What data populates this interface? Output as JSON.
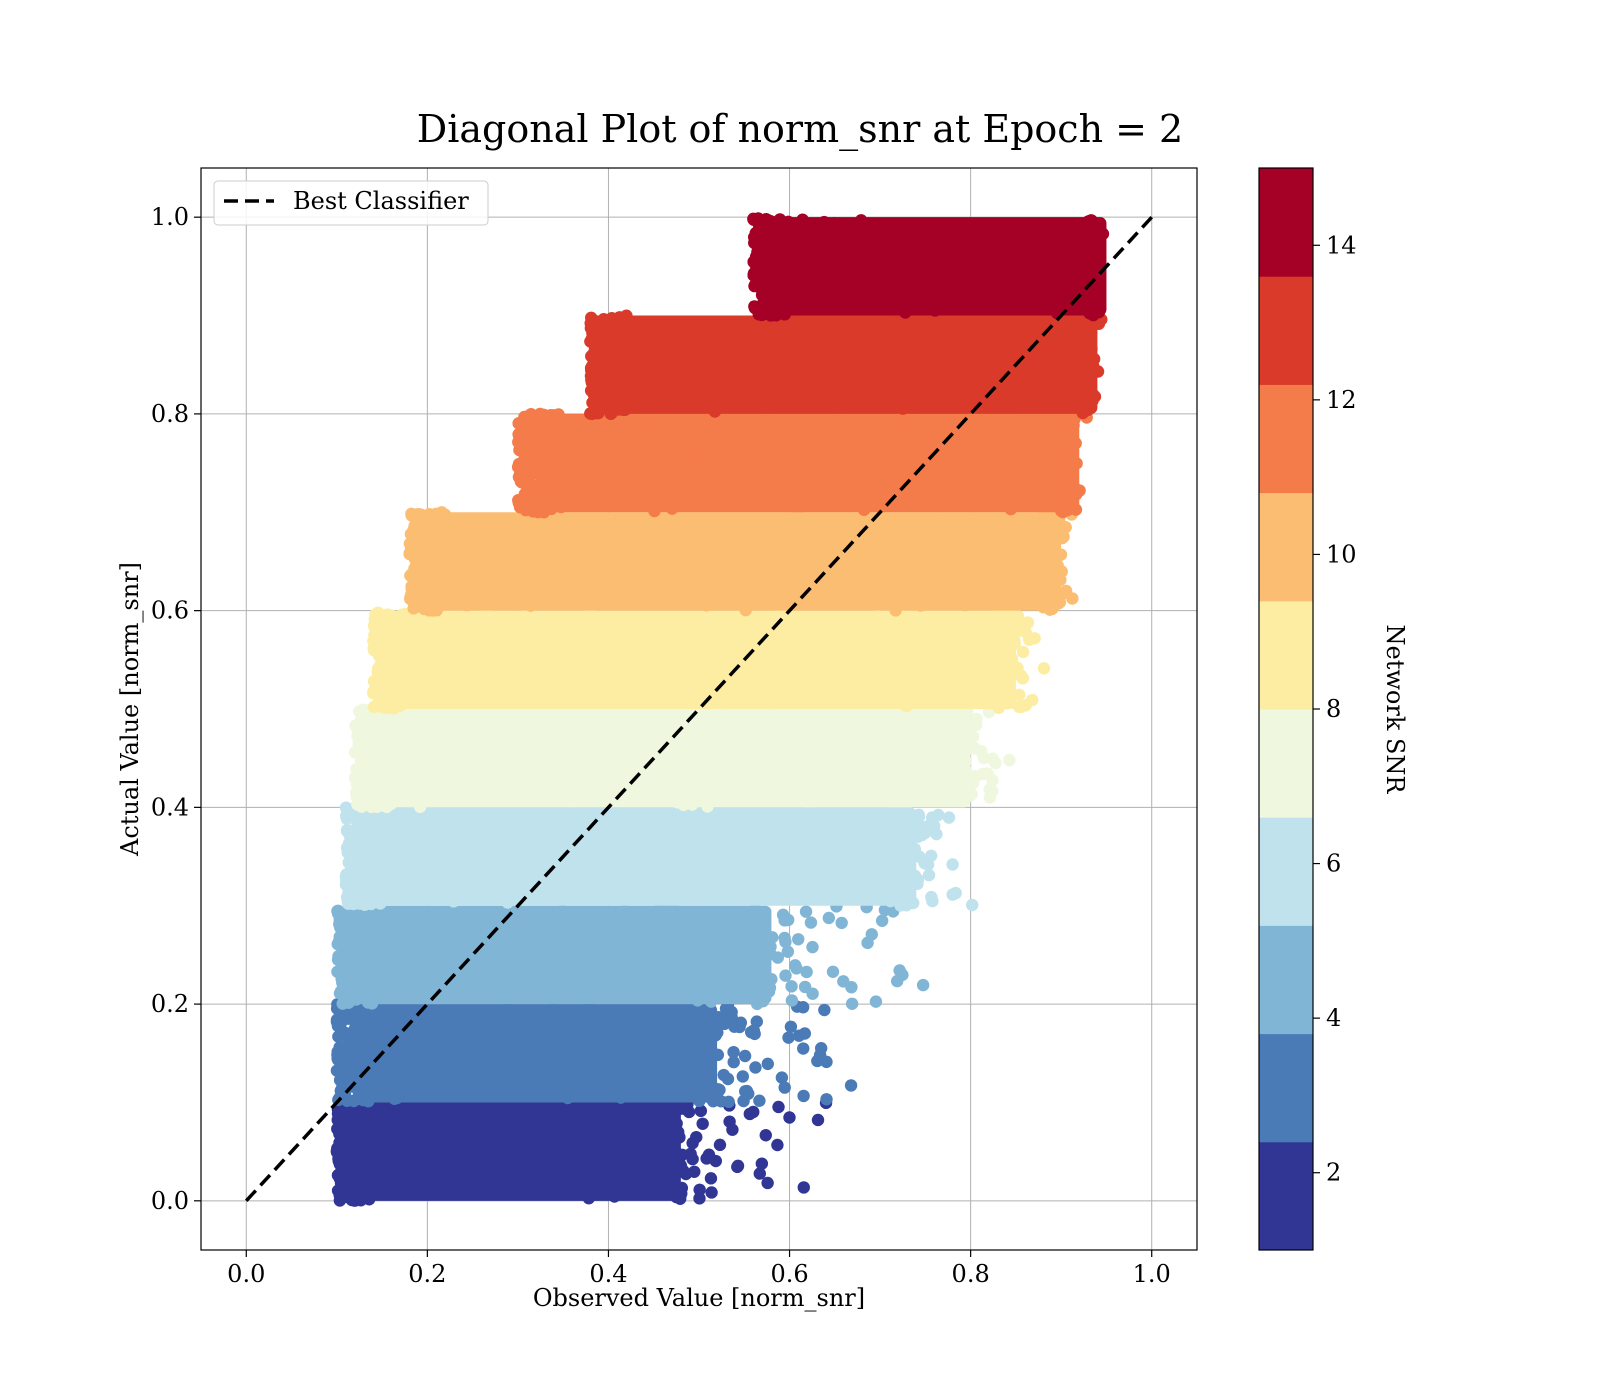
{
  "chart_data": {
    "type": "scatter",
    "title": "Diagonal Plot of norm_snr at Epoch = 2",
    "xlabel": "Observed Value [norm_snr]",
    "ylabel": "Actual Value [norm_snr]",
    "xlim": [
      -0.05,
      1.05
    ],
    "ylim": [
      -0.05,
      1.05
    ],
    "x_ticks": [
      "0.0",
      "0.2",
      "0.4",
      "0.6",
      "0.8",
      "1.0"
    ],
    "y_ticks": [
      "0.0",
      "0.2",
      "0.4",
      "0.6",
      "0.8",
      "1.0"
    ],
    "grid": true,
    "legend": {
      "position": "top-left",
      "entries": [
        "Best Classifier"
      ]
    },
    "reference_line": {
      "name": "Best Classifier",
      "style": "dashed",
      "color": "#000000",
      "points": [
        [
          0.0,
          0.0
        ],
        [
          1.0,
          1.0
        ]
      ]
    },
    "colorbar": {
      "label": "Network SNR",
      "range": [
        1,
        15
      ],
      "tick_labels": [
        "2",
        "4",
        "6",
        "8",
        "10",
        "12",
        "14"
      ],
      "tick_values": [
        2,
        4,
        6,
        8,
        10,
        12,
        14
      ]
    },
    "bands": [
      {
        "y_range": [
          0.0,
          0.1
        ],
        "x_core": [
          0.12,
          0.48
        ],
        "x_tail": 0.66,
        "color": "#313695"
      },
      {
        "y_range": [
          0.1,
          0.2
        ],
        "x_core": [
          0.12,
          0.52
        ],
        "x_tail": 0.7,
        "color": "#4a7bb7"
      },
      {
        "y_range": [
          0.2,
          0.3
        ],
        "x_core": [
          0.12,
          0.58
        ],
        "x_tail": 0.77,
        "color": "#81b5d6"
      },
      {
        "y_range": [
          0.3,
          0.4
        ],
        "x_core": [
          0.13,
          0.74
        ],
        "x_tail": 0.82,
        "color": "#bfe2ed"
      },
      {
        "y_range": [
          0.4,
          0.5
        ],
        "x_core": [
          0.14,
          0.8
        ],
        "x_tail": 0.86,
        "color": "#eff7de"
      },
      {
        "y_range": [
          0.5,
          0.6
        ],
        "x_core": [
          0.16,
          0.85
        ],
        "x_tail": 0.89,
        "color": "#fdeda2"
      },
      {
        "y_range": [
          0.6,
          0.7
        ],
        "x_core": [
          0.2,
          0.9
        ],
        "x_tail": 0.92,
        "color": "#fbbd71"
      },
      {
        "y_range": [
          0.7,
          0.8
        ],
        "x_core": [
          0.32,
          0.92
        ],
        "x_tail": 0.93,
        "color": "#f47b4a"
      },
      {
        "y_range": [
          0.8,
          0.9
        ],
        "x_core": [
          0.4,
          0.94
        ],
        "x_tail": 0.95,
        "color": "#d93a2a"
      },
      {
        "y_range": [
          0.9,
          1.0
        ],
        "x_core": [
          0.58,
          0.95
        ],
        "x_tail": 0.95,
        "color": "#a50026"
      }
    ],
    "colorbar_colors": [
      "#313695",
      "#4a7bb7",
      "#81b5d6",
      "#bfe2ed",
      "#eff7de",
      "#fdeda2",
      "#fbbd71",
      "#f47b4a",
      "#d93a2a",
      "#a50026"
    ]
  }
}
